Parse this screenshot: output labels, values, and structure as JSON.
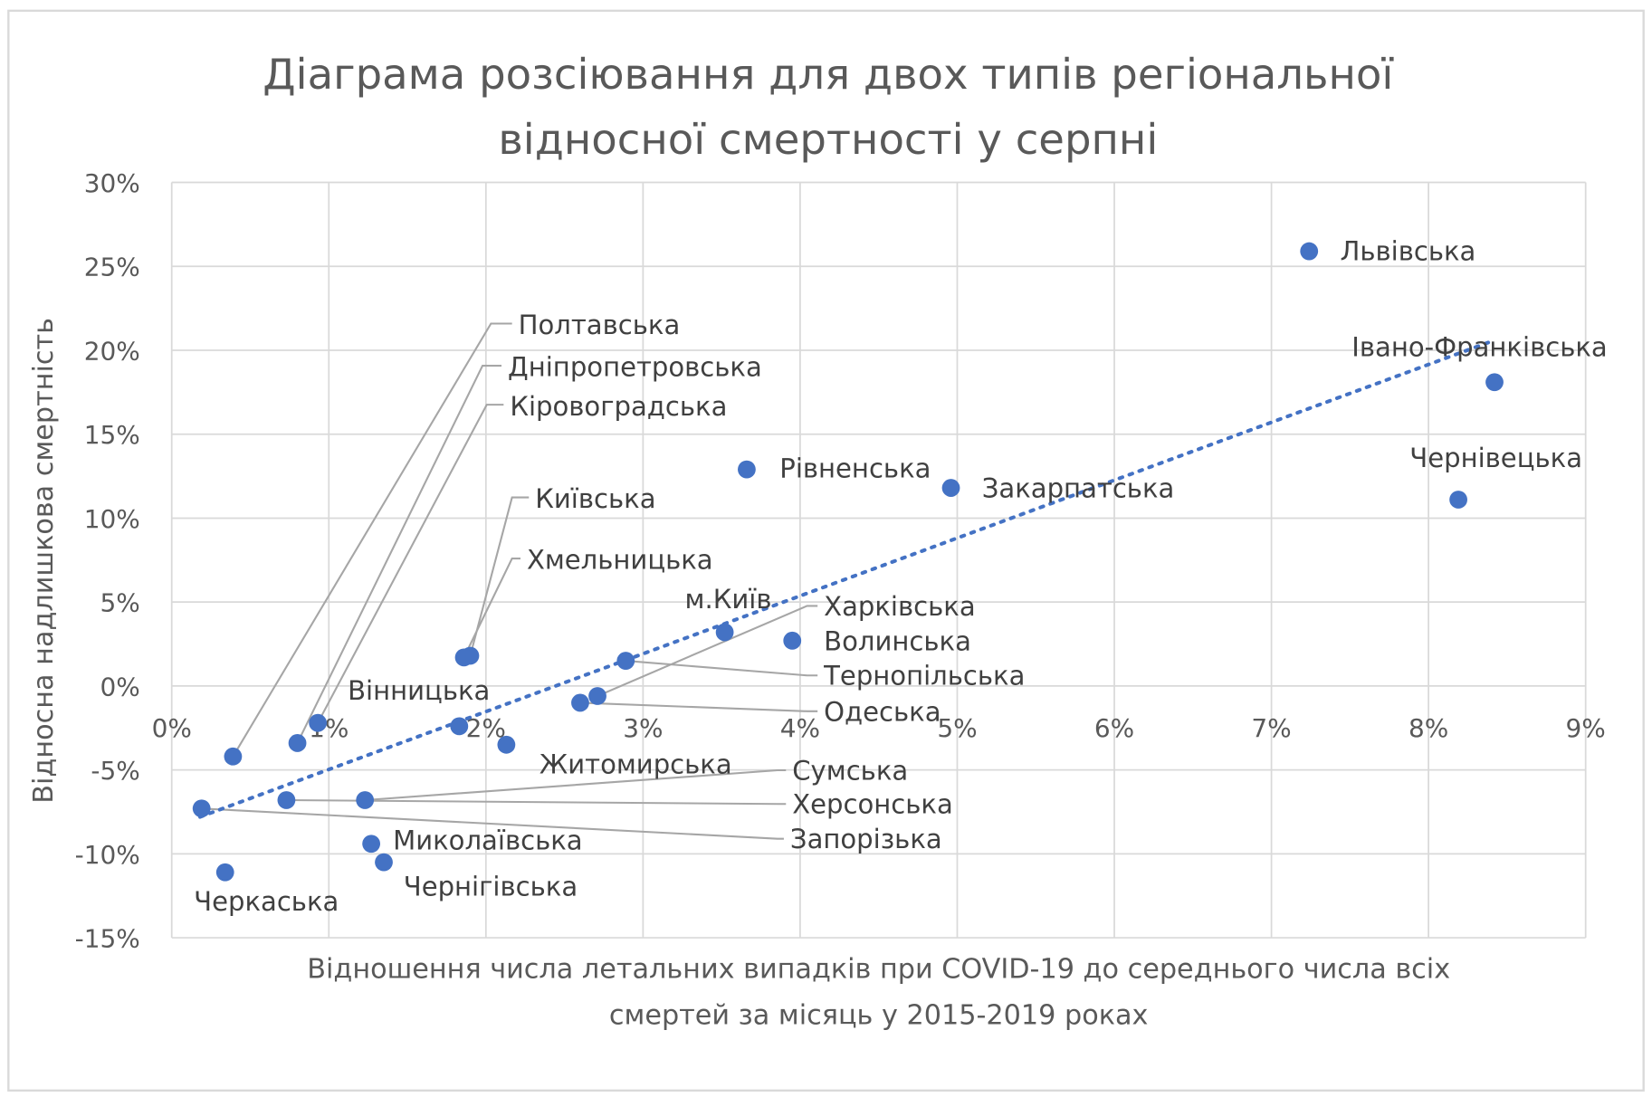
{
  "chart_data": {
    "type": "scatter",
    "title": [
      "Діаграма розсіювання для двох типів регіональної",
      "відносної смертності у серпні"
    ],
    "xlabel": [
      "Відношення числа летальних випадків при COVID-19 до середнього числа всіх",
      "смертей за місяць у 2015-2019 роках"
    ],
    "ylabel": "Відносна надлишкова смертність",
    "xlim": [
      0,
      9
    ],
    "ylim": [
      -15,
      30
    ],
    "x_ticks": [
      "0%",
      "1%",
      "2%",
      "3%",
      "4%",
      "5%",
      "6%",
      "7%",
      "8%",
      "9%"
    ],
    "y_ticks": [
      "30%",
      "25%",
      "20%",
      "15%",
      "10%",
      "5%",
      "0%",
      "-5%",
      "-10%",
      "-15%"
    ],
    "grid": true,
    "marker_color": "#4472C4",
    "trendline": {
      "style": "dotted",
      "color": "#4472C4",
      "x": [
        0.18,
        8.42
      ],
      "y": [
        -7.8,
        20.6
      ]
    },
    "points": [
      {
        "label": "Львівська",
        "x": 7.24,
        "y": 25.9
      },
      {
        "label": "Івано-Франківська",
        "x": 8.42,
        "y": 18.1
      },
      {
        "label": "Чернівецька",
        "x": 8.19,
        "y": 11.1
      },
      {
        "label": "Рівненська",
        "x": 3.66,
        "y": 12.9
      },
      {
        "label": "Закарпатська",
        "x": 4.96,
        "y": 11.8
      },
      {
        "label": "м.Київ",
        "x": 3.52,
        "y": 3.2
      },
      {
        "label": "Волинська",
        "x": 3.95,
        "y": 2.7
      },
      {
        "label": "Тернопільська",
        "x": 2.89,
        "y": 1.5
      },
      {
        "label": "Харківська",
        "x": 2.71,
        "y": -0.6
      },
      {
        "label": "Одеська",
        "x": 2.6,
        "y": -1.0
      },
      {
        "label": "Київська",
        "x": 1.9,
        "y": 1.8
      },
      {
        "label": "Хмельницька",
        "x": 1.86,
        "y": 1.7
      },
      {
        "label": "Вінницька",
        "x": 1.83,
        "y": -2.4
      },
      {
        "label": "Житомирська",
        "x": 2.13,
        "y": -3.5
      },
      {
        "label": "Полтавська",
        "x": 0.39,
        "y": -4.2
      },
      {
        "label": "Дніпропетровська",
        "x": 0.8,
        "y": -3.4
      },
      {
        "label": "Кіровоградська",
        "x": 0.93,
        "y": -2.2
      },
      {
        "label": "Сумська",
        "x": 1.23,
        "y": -6.8
      },
      {
        "label": "Херсонська",
        "x": 0.73,
        "y": -6.8
      },
      {
        "label": "Запорізька",
        "x": 0.19,
        "y": -7.3
      },
      {
        "label": "Черкаська",
        "x": 0.34,
        "y": -11.1
      },
      {
        "label": "Миколаївська",
        "x": 1.27,
        "y": -9.4
      },
      {
        "label": "Чернігівська",
        "x": 1.35,
        "y": -10.5
      }
    ]
  }
}
